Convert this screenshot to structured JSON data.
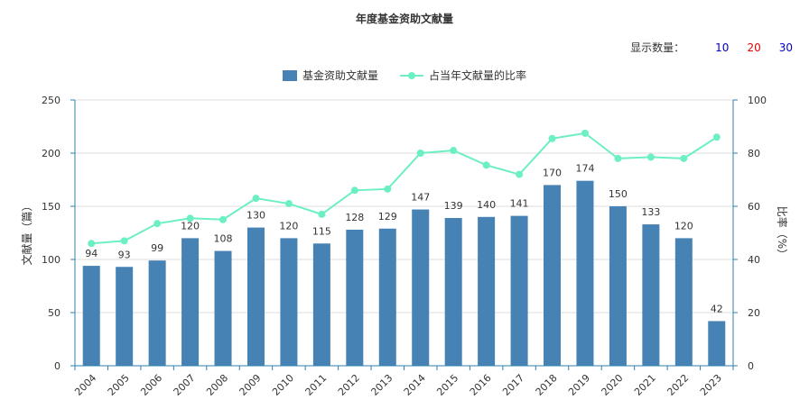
{
  "chart_title": "年度基金资助文献量",
  "controls": {
    "label": "显示数量：",
    "options": [
      {
        "label": "10",
        "color": "#0000cc"
      },
      {
        "label": "20",
        "color": "#e00000"
      },
      {
        "label": "30",
        "color": "#0000cc"
      }
    ]
  },
  "chart_data": {
    "type": "bar",
    "title": "年度基金资助文献量",
    "categories": [
      "2004",
      "2005",
      "2006",
      "2007",
      "2008",
      "2009",
      "2010",
      "2011",
      "2012",
      "2013",
      "2014",
      "2015",
      "2016",
      "2017",
      "2018",
      "2019",
      "2020",
      "2021",
      "2022",
      "2023"
    ],
    "series": [
      {
        "name": "基金资助文献量",
        "type": "bar",
        "axis": "left",
        "color": "#4682b4",
        "values": [
          94,
          93,
          99,
          120,
          108,
          130,
          120,
          115,
          128,
          129,
          147,
          139,
          140,
          141,
          170,
          174,
          150,
          133,
          120,
          42
        ]
      },
      {
        "name": "占当年文献量的比率",
        "type": "line",
        "axis": "right",
        "color": "#6cf0c2",
        "values": [
          46,
          47,
          53.5,
          55.5,
          55,
          63,
          61,
          57,
          66,
          66.5,
          80,
          81,
          75.5,
          72,
          85.5,
          87.5,
          78,
          78.5,
          78,
          86
        ]
      }
    ],
    "ylabel": "文献量（篇）",
    "y2label": "比率（%）",
    "ylim": [
      0,
      250
    ],
    "y2lim": [
      0,
      100
    ],
    "yticks": [
      "0",
      "50",
      "100",
      "150",
      "200",
      "250"
    ],
    "y2ticks": [
      "0",
      "20",
      "40",
      "60",
      "80",
      "100"
    ],
    "grid": true,
    "legend_position": "top-center"
  }
}
